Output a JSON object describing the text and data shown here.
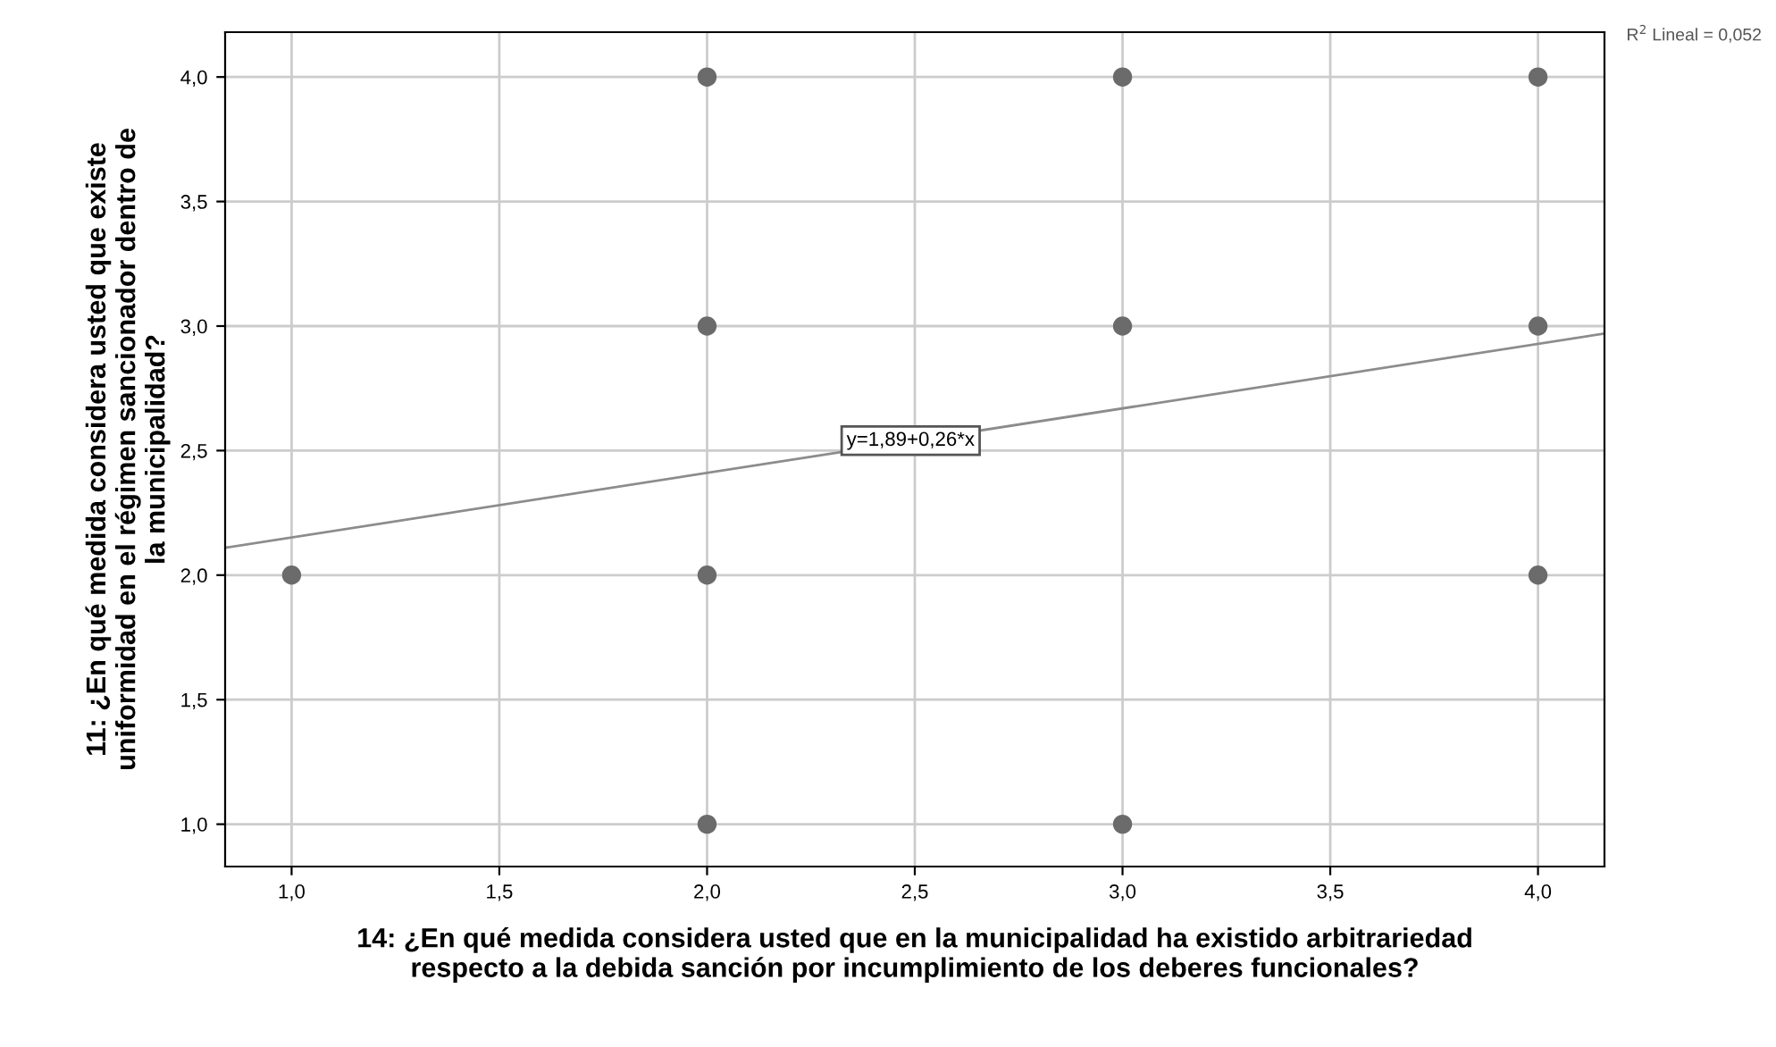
{
  "chart_data": {
    "type": "scatter",
    "xlabel": "14: ¿En qué medida considera usted que en la municipalidad ha existido arbitrariedad\nrespecto a la debida sanción por incumplimiento de los deberes funcionales?",
    "ylabel": "11: ¿En qué medida considera usted que existe\nuniformidad en el régimen sancionador dentro de\nla municipalidad?",
    "series": [
      {
        "color": "#6b6b6b",
        "marker": "circle",
        "x": [
          1,
          2,
          2,
          2,
          2,
          3,
          3,
          3,
          4,
          4,
          4
        ],
        "values": [
          2,
          4,
          3,
          2,
          1,
          4,
          3,
          1,
          4,
          3,
          2
        ]
      },
      {
        "type": "line",
        "color": "#8c8c8c",
        "marker": "none",
        "line_style": "solid",
        "x": [
          0.84,
          4.16
        ],
        "values": [
          2.11,
          2.97
        ]
      }
    ],
    "annotations": [
      {
        "text": "y=1,89+0,26*x",
        "x": 2.49,
        "y": 2.54
      },
      "R$^{2}$ Lineal = 0,052"
    ],
    "xlim": [
      0.84,
      4.16
    ],
    "ylim": [
      0.83,
      4.18
    ],
    "xticks": [
      {
        "value": 1,
        "label": "1,0"
      },
      {
        "value": 1.5,
        "label": "1,5"
      },
      {
        "value": 2,
        "label": "2,0"
      },
      {
        "value": 2.5,
        "label": "2,5"
      },
      {
        "value": 3,
        "label": "3,0"
      },
      {
        "value": 3.5,
        "label": "3,5"
      },
      {
        "value": 4,
        "label": "4,0"
      }
    ],
    "yticks": [
      {
        "value": 1,
        "label": "1,0"
      },
      {
        "value": 1.5,
        "label": "1,5"
      },
      {
        "value": 2,
        "label": "2,0"
      },
      {
        "value": 2.5,
        "label": "2,5"
      },
      {
        "value": 3,
        "label": "3,0"
      },
      {
        "value": 3.5,
        "label": "3,5"
      },
      {
        "value": 4,
        "label": "4,0"
      }
    ],
    "grid": true,
    "legend": false
  }
}
